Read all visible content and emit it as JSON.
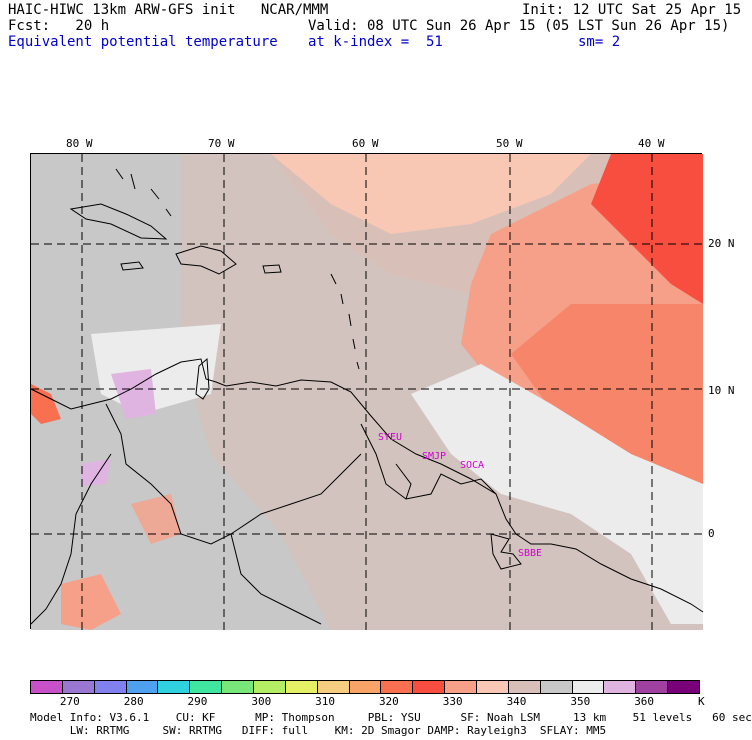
{
  "header": {
    "line1_left": "HAIC-HIWC 13km ARW-GFS init   NCAR/MMM",
    "line1_right": "Init: 12 UTC Sat 25 Apr 15",
    "line2_left": "Fcst:   20 h",
    "line2_right": "Valid: 08 UTC Sun 26 Apr 15 (05 LST Sun 26 Apr 15)",
    "line3_left": "Equivalent potential temperature",
    "line3_mid": "at k-index =  51",
    "line3_right": "sm= 2"
  },
  "axes": {
    "lon_labels": [
      "80 W",
      "70 W",
      "60 W",
      "50 W",
      "40 W"
    ],
    "lat_labels": [
      "20 N",
      "10 N",
      "0"
    ]
  },
  "stations": [
    "SYEU",
    "SMJP",
    "SOCA",
    "SBBE"
  ],
  "legend": {
    "unit": "K",
    "ticks": [
      "270",
      "280",
      "290",
      "300",
      "310",
      "320",
      "330",
      "340",
      "350",
      "360"
    ],
    "colors": [
      "#c850c8",
      "#9a78d2",
      "#8080ee",
      "#50a0f0",
      "#30d2e0",
      "#40e6a0",
      "#78e678",
      "#b4ee64",
      "#e6f064",
      "#f6cc80",
      "#f8a468",
      "#f87050",
      "#f84e40",
      "#f6a08a",
      "#f8c8b4",
      "#d8c0b8",
      "#c8c8c8",
      "#ececec",
      "#e0b4e0",
      "#a040a0",
      "#780078"
    ]
  },
  "footer": {
    "line1": "Model Info: V3.6.1    CU: KF      MP: Thompson     PBL: YSU      SF: Noah LSM     13 km    51 levels   60 sec",
    "line2": "      LW: RRTMG     SW: RRTMG   DIFF: full    KM: 2D Smagor DAMP: Rayleigh3  SFLAY: MM5"
  }
}
